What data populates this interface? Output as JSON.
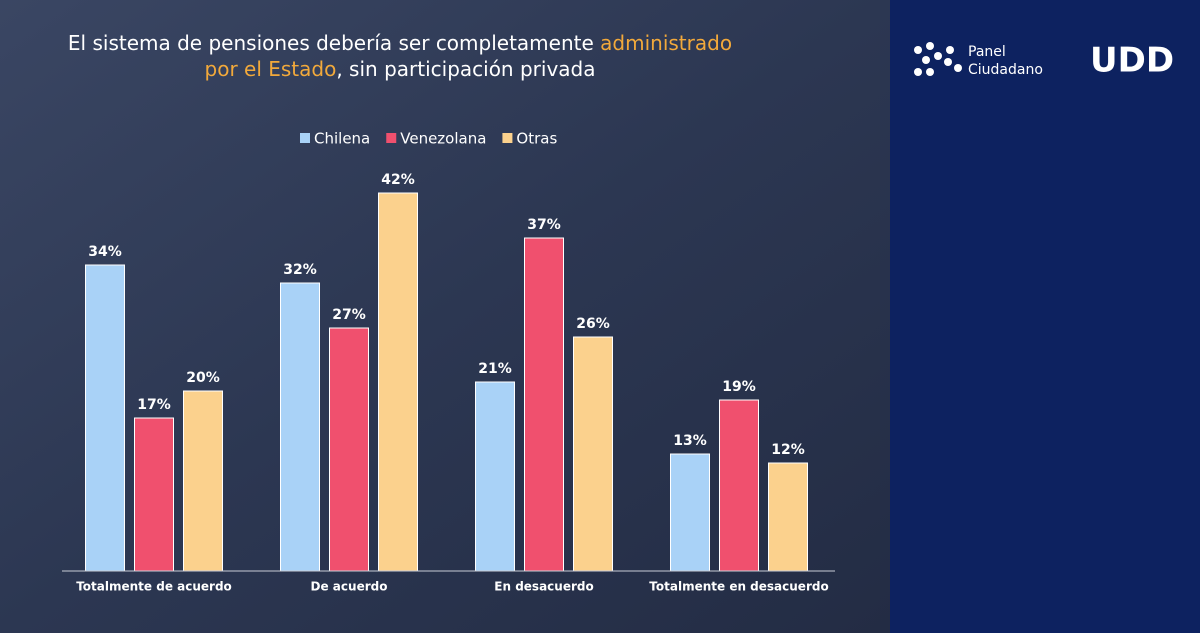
{
  "chart_data": {
    "type": "bar",
    "title_lines": [
      [
        {
          "text": "El sistema de pensiones debería ser completamente ",
          "color": "#ffffff"
        },
        {
          "text": "administrado",
          "color": "#f2a93b"
        }
      ],
      [
        {
          "text": "por el Estado",
          "color": "#f2a93b"
        },
        {
          "text": ", sin participación privada",
          "color": "#ffffff"
        }
      ]
    ],
    "categories": [
      "Totalmente de acuerdo",
      "De acuerdo",
      "En desacuerdo",
      "Totalmente en desacuerdo"
    ],
    "series": [
      {
        "name": "Chilena",
        "color": "#a9d2f7",
        "values": [
          34,
          32,
          21,
          13
        ],
        "value_labels": [
          "34%",
          "32%",
          "21%",
          "13%"
        ]
      },
      {
        "name": "Venezolana",
        "color": "#f0506e",
        "values": [
          17,
          27,
          37,
          19
        ],
        "value_labels": [
          "17%",
          "27%",
          "37%",
          "19%"
        ]
      },
      {
        "name": "Otras",
        "color": "#fbd18d",
        "values": [
          20,
          42,
          26,
          12
        ],
        "value_labels": [
          "20%",
          "42%",
          "26%",
          "12%"
        ]
      }
    ]
  },
  "branding": {
    "panel": "Panel",
    "ciudadano": "Ciudadano",
    "udd": "UDD"
  }
}
